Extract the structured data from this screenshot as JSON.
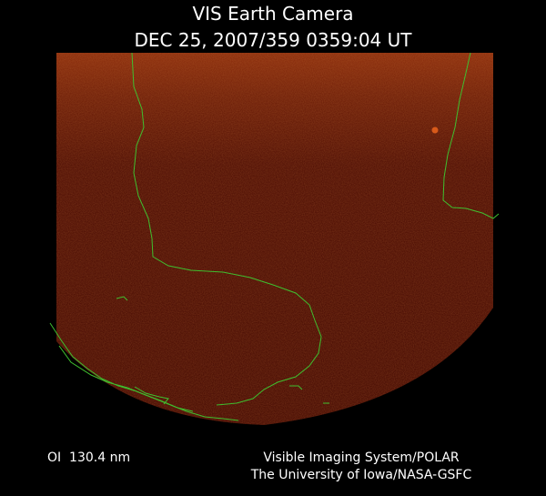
{
  "header": {
    "title": "VIS Earth Camera",
    "timestamp": "DEC 25, 2007/359 0359:04 UT"
  },
  "footer": {
    "wavelength": "OI  130.4 nm",
    "credit_line1": "Visible Imaging System/POLAR",
    "credit_line2": "The University of Iowa/NASA-GSFC"
  }
}
